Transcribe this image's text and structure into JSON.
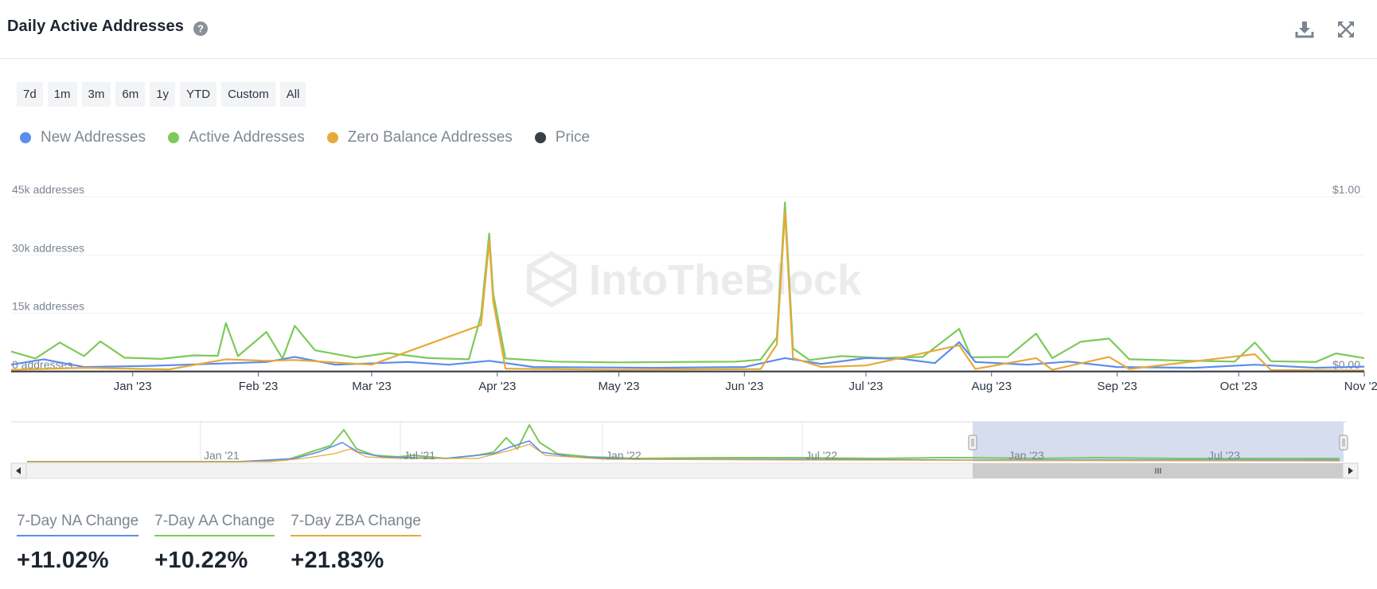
{
  "header": {
    "title": "Daily Active Addresses",
    "help_icon": "question-circle-icon",
    "download_icon": "download-icon",
    "expand_icon": "expand-icon"
  },
  "ranges": [
    "7d",
    "1m",
    "3m",
    "6m",
    "1y",
    "YTD",
    "Custom",
    "All"
  ],
  "legend": [
    {
      "label": "New Addresses",
      "color": "#5b8dee"
    },
    {
      "label": "Active Addresses",
      "color": "#7ec95a"
    },
    {
      "label": "Zero Balance Addresses",
      "color": "#e8a93a"
    },
    {
      "label": "Price",
      "color": "#3a3f47"
    }
  ],
  "watermark": "IntoTheBlock",
  "chart_data": {
    "type": "line",
    "y_axis_left": {
      "ticks": [
        "0 addresses",
        "15k addresses",
        "30k addresses",
        "45k addresses"
      ],
      "range": [
        0,
        45000
      ]
    },
    "y_axis_right": {
      "ticks": [
        "$0.00",
        "$1.00"
      ],
      "range": [
        0,
        1
      ]
    },
    "x_range": [
      "2022-12-02",
      "2023-11-01"
    ],
    "x_ticks": [
      {
        "label": "Jan '23",
        "date": "2023-01-01"
      },
      {
        "label": "Feb '23",
        "date": "2023-02-01"
      },
      {
        "label": "Mar '23",
        "date": "2023-03-01"
      },
      {
        "label": "Apr '23",
        "date": "2023-04-01"
      },
      {
        "label": "May '23",
        "date": "2023-05-01"
      },
      {
        "label": "Jun '23",
        "date": "2023-06-01"
      },
      {
        "label": "Jul '23",
        "date": "2023-07-01"
      },
      {
        "label": "Aug '23",
        "date": "2023-08-01"
      },
      {
        "label": "Sep '23",
        "date": "2023-09-01"
      },
      {
        "label": "Oct '23",
        "date": "2023-10-01"
      },
      {
        "label": "Nov '23",
        "date": "2023-11-01"
      }
    ],
    "series": [
      {
        "name": "Active Addresses",
        "color": "#7ec95a",
        "points": [
          [
            "2022-12-02",
            5200
          ],
          [
            "2022-12-08",
            3400
          ],
          [
            "2022-12-14",
            7500
          ],
          [
            "2022-12-20",
            4000
          ],
          [
            "2022-12-24",
            7800
          ],
          [
            "2022-12-30",
            3600
          ],
          [
            "2023-01-08",
            3300
          ],
          [
            "2023-01-16",
            4200
          ],
          [
            "2023-01-22",
            4100
          ],
          [
            "2023-01-24",
            12500
          ],
          [
            "2023-01-27",
            4000
          ],
          [
            "2023-02-03",
            10200
          ],
          [
            "2023-02-07",
            3400
          ],
          [
            "2023-02-10",
            11800
          ],
          [
            "2023-02-15",
            5500
          ],
          [
            "2023-02-25",
            3600
          ],
          [
            "2023-03-05",
            4800
          ],
          [
            "2023-03-15",
            3500
          ],
          [
            "2023-03-25",
            3200
          ],
          [
            "2023-03-28",
            14500
          ],
          [
            "2023-03-30",
            35500
          ],
          [
            "2023-03-31",
            20000
          ],
          [
            "2023-04-03",
            3400
          ],
          [
            "2023-04-15",
            2600
          ],
          [
            "2023-04-30",
            2400
          ],
          [
            "2023-05-15",
            2500
          ],
          [
            "2023-05-30",
            2600
          ],
          [
            "2023-06-05",
            3100
          ],
          [
            "2023-06-09",
            8800
          ],
          [
            "2023-06-11",
            43500
          ],
          [
            "2023-06-13",
            6000
          ],
          [
            "2023-06-17",
            3000
          ],
          [
            "2023-06-25",
            4000
          ],
          [
            "2023-07-05",
            3500
          ],
          [
            "2023-07-15",
            3800
          ],
          [
            "2023-07-24",
            11000
          ],
          [
            "2023-07-27",
            3700
          ],
          [
            "2023-08-05",
            3800
          ],
          [
            "2023-08-12",
            9800
          ],
          [
            "2023-08-16",
            3500
          ],
          [
            "2023-08-23",
            7700
          ],
          [
            "2023-08-30",
            8500
          ],
          [
            "2023-09-04",
            3200
          ],
          [
            "2023-09-15",
            2900
          ],
          [
            "2023-09-30",
            2600
          ],
          [
            "2023-10-05",
            7500
          ],
          [
            "2023-10-09",
            2700
          ],
          [
            "2023-10-20",
            2500
          ],
          [
            "2023-10-25",
            4700
          ],
          [
            "2023-11-01",
            3500
          ]
        ]
      },
      {
        "name": "New Addresses",
        "color": "#5b8dee",
        "points": [
          [
            "2022-12-02",
            1800
          ],
          [
            "2022-12-10",
            3200
          ],
          [
            "2022-12-20",
            1200
          ],
          [
            "2023-01-05",
            1500
          ],
          [
            "2023-01-20",
            2000
          ],
          [
            "2023-02-03",
            2500
          ],
          [
            "2023-02-10",
            3800
          ],
          [
            "2023-02-20",
            1800
          ],
          [
            "2023-03-10",
            2500
          ],
          [
            "2023-03-20",
            1800
          ],
          [
            "2023-03-30",
            2800
          ],
          [
            "2023-04-10",
            1200
          ],
          [
            "2023-05-10",
            1000
          ],
          [
            "2023-06-01",
            1200
          ],
          [
            "2023-06-11",
            3500
          ],
          [
            "2023-06-20",
            2000
          ],
          [
            "2023-07-01",
            3500
          ],
          [
            "2023-07-10",
            3300
          ],
          [
            "2023-07-18",
            2200
          ],
          [
            "2023-07-24",
            7600
          ],
          [
            "2023-07-28",
            2500
          ],
          [
            "2023-08-10",
            1800
          ],
          [
            "2023-08-20",
            2600
          ],
          [
            "2023-09-01",
            1200
          ],
          [
            "2023-09-20",
            1000
          ],
          [
            "2023-10-05",
            1800
          ],
          [
            "2023-10-20",
            1000
          ],
          [
            "2023-11-01",
            1300
          ]
        ]
      },
      {
        "name": "Zero Balance Addresses",
        "color": "#e8a93a",
        "points": [
          [
            "2022-12-02",
            500
          ],
          [
            "2022-12-20",
            1000
          ],
          [
            "2023-01-10",
            600
          ],
          [
            "2023-01-24",
            3200
          ],
          [
            "2023-02-03",
            2800
          ],
          [
            "2023-02-10",
            3000
          ],
          [
            "2023-03-01",
            1800
          ],
          [
            "2023-03-28",
            12000
          ],
          [
            "2023-03-30",
            33500
          ],
          [
            "2023-03-31",
            18000
          ],
          [
            "2023-04-03",
            800
          ],
          [
            "2023-05-01",
            500
          ],
          [
            "2023-06-05",
            700
          ],
          [
            "2023-06-09",
            7000
          ],
          [
            "2023-06-11",
            41000
          ],
          [
            "2023-06-13",
            3500
          ],
          [
            "2023-06-20",
            1200
          ],
          [
            "2023-07-01",
            1600
          ],
          [
            "2023-07-24",
            6800
          ],
          [
            "2023-07-28",
            700
          ],
          [
            "2023-08-12",
            3500
          ],
          [
            "2023-08-16",
            500
          ],
          [
            "2023-08-30",
            3800
          ],
          [
            "2023-09-04",
            700
          ],
          [
            "2023-10-05",
            4500
          ],
          [
            "2023-10-09",
            400
          ],
          [
            "2023-11-01",
            300
          ]
        ]
      },
      {
        "name": "Price",
        "color": "#3a3f47",
        "points": [
          [
            "2022-12-02",
            0.002
          ],
          [
            "2023-11-01",
            0.002
          ]
        ]
      }
    ]
  },
  "navigator": {
    "ticks": [
      "Jan '21",
      "Jul '21",
      "Jan '22",
      "Jul '22",
      "Jan '23",
      "Jul '23"
    ],
    "scroll_left_icon": "chevron-left-icon",
    "scroll_right_icon": "chevron-right-icon",
    "grip_icon": "grip-icon"
  },
  "stats": [
    {
      "label": "7-Day NA Change",
      "value": "+11.02%",
      "color": "#5b8dee"
    },
    {
      "label": "7-Day AA Change",
      "value": "+10.22%",
      "color": "#7ec95a"
    },
    {
      "label": "7-Day ZBA Change",
      "value": "+21.83%",
      "color": "#e8a93a"
    }
  ]
}
